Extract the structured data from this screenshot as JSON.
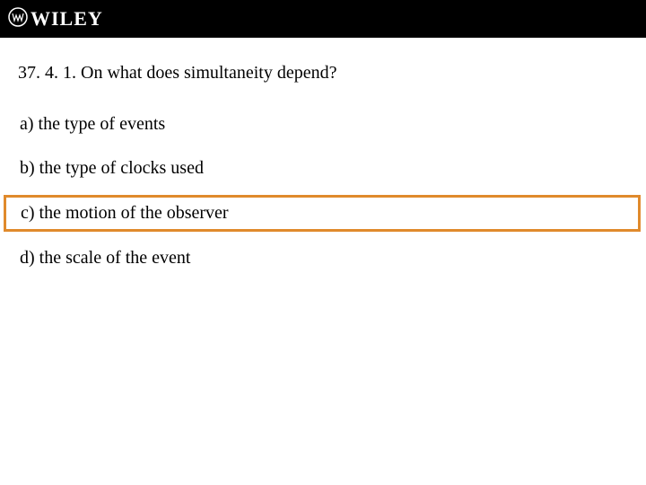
{
  "header": {
    "logo_text": "WILEY"
  },
  "question": {
    "text": "37. 4. 1. On what does simultaneity depend?"
  },
  "options": [
    {
      "label": "a)  the type of events",
      "highlighted": false
    },
    {
      "label": "b)  the type of clocks used",
      "highlighted": false
    },
    {
      "label": "c)  the motion of the observer",
      "highlighted": true
    },
    {
      "label": "d)  the scale of the event",
      "highlighted": false
    }
  ],
  "colors": {
    "header_bg": "#000000",
    "highlight_border": "#e08a2c",
    "text": "#000000",
    "background": "#ffffff"
  },
  "typography": {
    "question_fontsize": 20,
    "option_fontsize": 20,
    "logo_fontsize": 22
  }
}
